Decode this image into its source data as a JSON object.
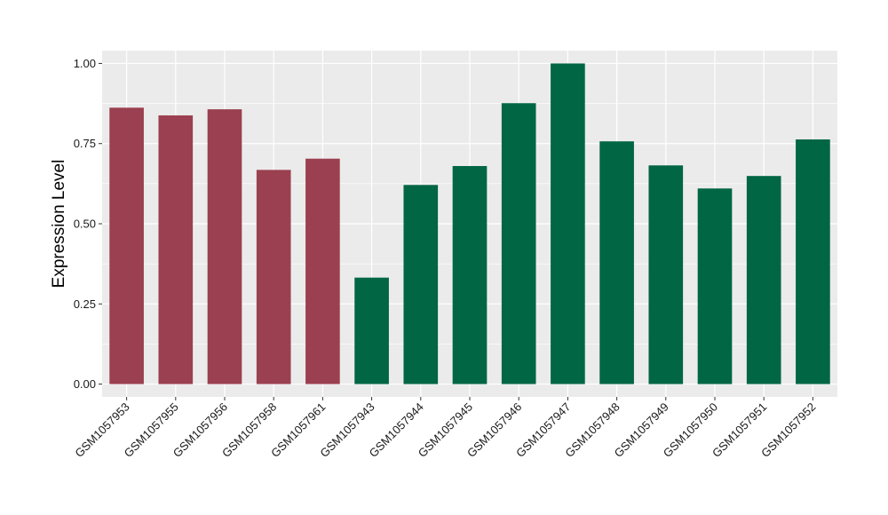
{
  "chart_data": {
    "type": "bar",
    "ylabel": "Expression Level",
    "xlabel": "",
    "ylim": [
      -0.04,
      1.04
    ],
    "yticks": [
      0.0,
      0.25,
      0.5,
      0.75,
      1.0
    ],
    "ytick_labels": [
      "0.00",
      "0.25",
      "0.50",
      "0.75",
      "1.00"
    ],
    "grid": true,
    "panel_color": "#EBEBEB",
    "categories": [
      "GSM1057953",
      "GSM1057955",
      "GSM1057956",
      "GSM1057958",
      "GSM1057961",
      "GSM1057943",
      "GSM1057944",
      "GSM1057945",
      "GSM1057946",
      "GSM1057947",
      "GSM1057948",
      "GSM1057949",
      "GSM1057950",
      "GSM1057951",
      "GSM1057952"
    ],
    "values": [
      0.862,
      0.838,
      0.857,
      0.668,
      0.703,
      0.332,
      0.621,
      0.68,
      0.876,
      1.0,
      0.757,
      0.682,
      0.61,
      0.649,
      0.763
    ],
    "bar_colors": [
      "#9B4050",
      "#9B4050",
      "#9B4050",
      "#9B4050",
      "#9B4050",
      "#006644",
      "#006644",
      "#006644",
      "#006644",
      "#006644",
      "#006644",
      "#006644",
      "#006644",
      "#006644",
      "#006644"
    ]
  }
}
